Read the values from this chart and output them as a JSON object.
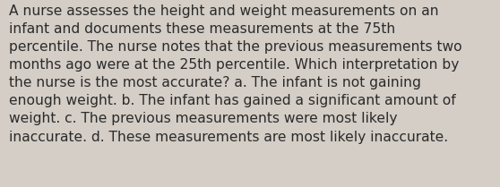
{
  "lines": [
    "A nurse assesses the height and weight measurements on an",
    "infant and documents these measurements at the 75th",
    "percentile. The nurse notes that the previous measurements two",
    "months ago were at the 25th percentile. Which interpretation by",
    "the nurse is the most accurate? a. The infant is not gaining",
    "enough weight. b. The infant has gained a significant amount of",
    "weight. c. The previous measurements were most likely",
    "inaccurate. d. These measurements are most likely inaccurate."
  ],
  "background_color": "#d4cec6",
  "text_color": "#2b2b2b",
  "font_size": 11.2,
  "fig_width": 5.58,
  "fig_height": 2.09,
  "linespacing": 1.42
}
